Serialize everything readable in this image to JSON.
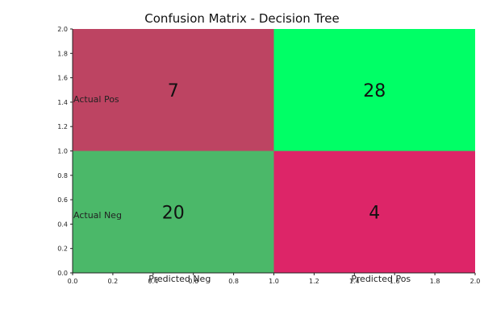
{
  "chart_data": {
    "type": "heatmap",
    "title": "Confusion Matrix - Decision Tree",
    "xlim": [
      0,
      2
    ],
    "ylim": [
      0,
      2
    ],
    "x_ticks": [
      "0.0",
      "0.2",
      "0.4",
      "0.6",
      "0.8",
      "1.0",
      "1.2",
      "1.4",
      "1.6",
      "1.8",
      "2.0"
    ],
    "y_ticks": [
      "0.0",
      "0.2",
      "0.4",
      "0.6",
      "0.8",
      "1.0",
      "1.2",
      "1.4",
      "1.6",
      "1.8",
      "2.0"
    ],
    "row_labels": [
      {
        "name": "actual-pos",
        "text": "Actual Pos",
        "y": 1.4
      },
      {
        "name": "actual-neg",
        "text": "Actual Neg",
        "y": 0.45
      }
    ],
    "col_labels": [
      {
        "name": "predicted-neg",
        "text": "Predicted Neg",
        "x": 0.5
      },
      {
        "name": "predicted-pos",
        "text": "Predicted Pos",
        "x": 1.5
      }
    ],
    "cells": [
      {
        "name": "cell-actual-pos-predicted-neg",
        "x0": 0,
        "x1": 1,
        "y0": 1,
        "y1": 2,
        "value": "7",
        "color": "#bd4462"
      },
      {
        "name": "cell-actual-pos-predicted-pos",
        "x0": 1,
        "x1": 2,
        "y0": 1,
        "y1": 2,
        "value": "28",
        "color": "#00ff66"
      },
      {
        "name": "cell-actual-neg-predicted-neg",
        "x0": 0,
        "x1": 1,
        "y0": 0,
        "y1": 1,
        "value": "20",
        "color": "#4bb869"
      },
      {
        "name": "cell-actual-neg-predicted-pos",
        "x0": 1,
        "x1": 2,
        "y0": 0,
        "y1": 1,
        "value": "4",
        "color": "#dd2568"
      }
    ],
    "grid": false,
    "legend": "none"
  }
}
